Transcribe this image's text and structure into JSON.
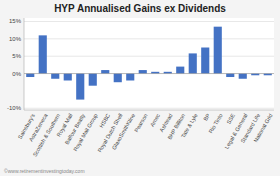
{
  "chart_data": {
    "type": "bar",
    "title": "HYP Annualised Gains ex Dividends",
    "categories": [
      "Sainsbury's",
      "AstraZeneca",
      "Scottish & Southern",
      "Royal Mail",
      "Balfour Beatty",
      "Royal Mail Group",
      "HSBC",
      "Royal Dutch Shell",
      "GlaxoSmithKline",
      "Pearson",
      "Amec",
      "Ashtead",
      "BHP Billiton",
      "Tate & Lyle",
      "BP",
      "Rio Tinto",
      "SSE",
      "Legal & General",
      "Standard Life",
      "National Grid"
    ],
    "values": [
      -1.0,
      11.0,
      -1.5,
      -2.0,
      -7.5,
      -3.5,
      1.0,
      -2.5,
      -2.0,
      1.0,
      0.5,
      0.5,
      2.0,
      5.8,
      7.5,
      13.5,
      -1.0,
      -1.5,
      -0.5,
      -0.5
    ],
    "color": "#4472C4",
    "ylim": [
      -10.5,
      16
    ],
    "yticks": [
      {
        "value": -10,
        "label": "-10%"
      },
      {
        "value": 0,
        "label": "0%"
      },
      {
        "value": 5,
        "label": "5%"
      },
      {
        "value": 10,
        "label": "10%"
      },
      {
        "value": 15,
        "label": "15%"
      }
    ],
    "grid": true,
    "annotation": "©www.retirementinvestingtoday.com"
  }
}
